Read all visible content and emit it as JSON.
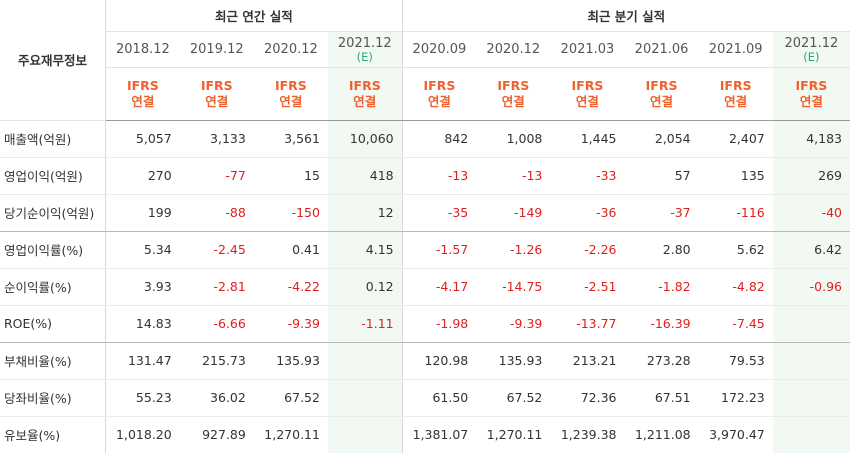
{
  "corner_label": "주요재무정보",
  "groups": {
    "annual": "최근 연간 실적",
    "quarterly": "최근 분기 실적"
  },
  "periods": [
    {
      "label": "2018.12",
      "est": ""
    },
    {
      "label": "2019.12",
      "est": ""
    },
    {
      "label": "2020.12",
      "est": ""
    },
    {
      "label": "2021.12",
      "est": "(E)"
    },
    {
      "label": "2020.09",
      "est": ""
    },
    {
      "label": "2020.12",
      "est": ""
    },
    {
      "label": "2021.03",
      "est": ""
    },
    {
      "label": "2021.06",
      "est": ""
    },
    {
      "label": "2021.09",
      "est": ""
    },
    {
      "label": "2021.12",
      "est": "(E)"
    }
  ],
  "ifrs": {
    "line1": "IFRS",
    "line2": "연결"
  },
  "rows": [
    {
      "label": "매출액(억원)",
      "values": [
        "5,057",
        "3,133",
        "3,561",
        "10,060",
        "842",
        "1,008",
        "1,445",
        "2,054",
        "2,407",
        "4,183"
      ]
    },
    {
      "label": "영업이익(억원)",
      "values": [
        "270",
        "-77",
        "15",
        "418",
        "-13",
        "-13",
        "-33",
        "57",
        "135",
        "269"
      ]
    },
    {
      "label": "당기순이익(억원)",
      "values": [
        "199",
        "-88",
        "-150",
        "12",
        "-35",
        "-149",
        "-36",
        "-37",
        "-116",
        "-40"
      ]
    },
    {
      "label": "영업이익률(%)",
      "values": [
        "5.34",
        "-2.45",
        "0.41",
        "4.15",
        "-1.57",
        "-1.26",
        "-2.26",
        "2.80",
        "5.62",
        "6.42"
      ]
    },
    {
      "label": "순이익률(%)",
      "values": [
        "3.93",
        "-2.81",
        "-4.22",
        "0.12",
        "-4.17",
        "-14.75",
        "-2.51",
        "-1.82",
        "-4.82",
        "-0.96"
      ]
    },
    {
      "label": "ROE(%)",
      "values": [
        "14.83",
        "-6.66",
        "-9.39",
        "-1.11",
        "-1.98",
        "-9.39",
        "-13.77",
        "-16.39",
        "-7.45",
        ""
      ]
    },
    {
      "label": "부채비율(%)",
      "values": [
        "131.47",
        "215.73",
        "135.93",
        "",
        "120.98",
        "135.93",
        "213.21",
        "273.28",
        "79.53",
        ""
      ]
    },
    {
      "label": "당좌비율(%)",
      "values": [
        "55.23",
        "36.02",
        "67.52",
        "",
        "61.50",
        "67.52",
        "72.36",
        "67.51",
        "172.23",
        ""
      ]
    },
    {
      "label": "유보율(%)",
      "values": [
        "1,018.20",
        "927.89",
        "1,270.11",
        "",
        "1,381.07",
        "1,270.11",
        "1,239.38",
        "1,211.08",
        "3,970.47",
        ""
      ]
    }
  ],
  "section_breaks_after": [
    2,
    5
  ],
  "colors": {
    "negative": "#e01f1f",
    "ifrs": "#f2602d",
    "estimate": "#2ca87f",
    "estimate_bg": "#f2f8f2"
  }
}
